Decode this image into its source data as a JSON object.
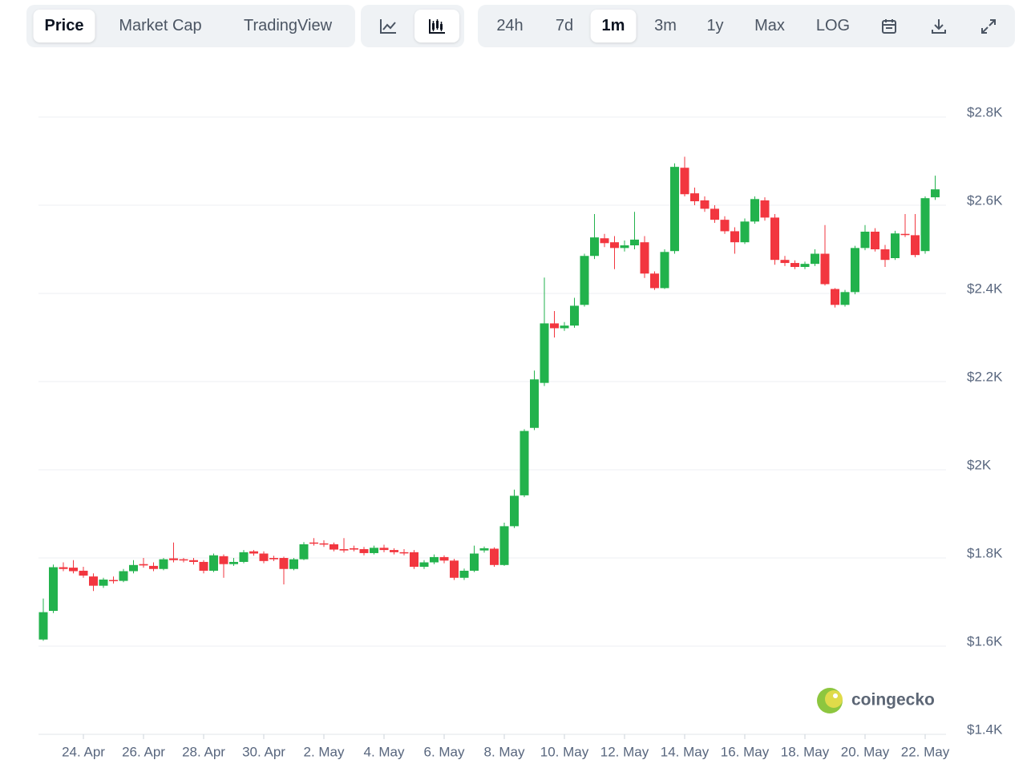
{
  "toolbar": {
    "views": [
      "Price",
      "Market Cap",
      "TradingView"
    ],
    "active_view": "Price",
    "ranges": [
      "24h",
      "7d",
      "1m",
      "3m",
      "1y",
      "Max",
      "LOG"
    ],
    "active_range": "1m"
  },
  "chart_data": {
    "type": "candlestick",
    "categories": [
      null,
      null,
      null,
      null,
      "24. Apr",
      null,
      null,
      null,
      null,
      null,
      "26. Apr",
      null,
      null,
      null,
      null,
      null,
      "28. Apr",
      null,
      null,
      null,
      null,
      null,
      "30. Apr",
      null,
      null,
      null,
      null,
      null,
      "2. May",
      null,
      null,
      null,
      null,
      null,
      "4. May",
      null,
      null,
      null,
      null,
      null,
      "6. May",
      null,
      null,
      null,
      null,
      null,
      "8. May",
      null,
      null,
      null,
      null,
      null,
      "10. May",
      null,
      null,
      null,
      null,
      null,
      "12. May",
      null,
      null,
      null,
      null,
      null,
      "14. May",
      null,
      null,
      null,
      null,
      null,
      "16. May",
      null,
      null,
      null,
      null,
      null,
      "18. May",
      null,
      null,
      null,
      null,
      null,
      "20. May",
      null,
      null,
      null,
      null,
      null,
      "22. May",
      null
    ],
    "open": [
      1615,
      1680,
      1779,
      1778,
      1771,
      1758,
      1737,
      1750,
      1748,
      1770,
      1786,
      1782,
      1775,
      1799,
      1797,
      1795,
      1791,
      1771,
      1804,
      1786,
      1791,
      1815,
      1810,
      1800,
      1800,
      1775,
      1797,
      1835,
      1833,
      1831,
      1820,
      1822,
      1820,
      1811,
      1823,
      1818,
      1813,
      1813,
      1780,
      1790,
      1802,
      1794,
      1755,
      1771,
      1817,
      1821,
      1784,
      1872,
      1942,
      2095,
      2197,
      2332,
      2321,
      2327,
      2374,
      2485,
      2525,
      2516,
      2503,
      2509,
      2516,
      2445,
      2412,
      2496,
      2685,
      2627,
      2611,
      2592,
      2567,
      2541,
      2516,
      2563,
      2611,
      2572,
      2476,
      2469,
      2460,
      2467,
      2490,
      2410,
      2374,
      2403,
      2503,
      2540,
      2500,
      2480,
      2535,
      2532,
      2496,
      2618
    ],
    "high": [
      1708,
      1785,
      1790,
      1795,
      1780,
      1765,
      1755,
      1758,
      1775,
      1795,
      1800,
      1790,
      1800,
      1835,
      1800,
      1800,
      1795,
      1810,
      1808,
      1800,
      1818,
      1818,
      1815,
      1805,
      1803,
      1800,
      1836,
      1845,
      1840,
      1835,
      1845,
      1828,
      1825,
      1828,
      1830,
      1822,
      1820,
      1818,
      1795,
      1808,
      1806,
      1798,
      1776,
      1828,
      1826,
      1824,
      1880,
      1955,
      2092,
      2225,
      2436,
      2360,
      2335,
      2390,
      2490,
      2580,
      2535,
      2530,
      2520,
      2585,
      2530,
      2450,
      2500,
      2695,
      2710,
      2640,
      2620,
      2600,
      2575,
      2550,
      2570,
      2620,
      2618,
      2580,
      2485,
      2475,
      2472,
      2500,
      2555,
      2412,
      2408,
      2508,
      2555,
      2548,
      2510,
      2542,
      2580,
      2580,
      2620,
      2667
    ],
    "low": [
      1612,
      1675,
      1770,
      1765,
      1755,
      1725,
      1732,
      1742,
      1745,
      1765,
      1778,
      1770,
      1772,
      1790,
      1790,
      1785,
      1765,
      1768,
      1755,
      1782,
      1788,
      1805,
      1788,
      1793,
      1740,
      1772,
      1795,
      1828,
      1825,
      1815,
      1812,
      1815,
      1806,
      1808,
      1813,
      1808,
      1806,
      1775,
      1775,
      1786,
      1788,
      1750,
      1750,
      1768,
      1812,
      1780,
      1782,
      1868,
      1938,
      2090,
      2190,
      2300,
      2315,
      2322,
      2370,
      2478,
      2505,
      2455,
      2495,
      2500,
      2435,
      2408,
      2410,
      2490,
      2620,
      2600,
      2585,
      2560,
      2535,
      2490,
      2512,
      2558,
      2565,
      2465,
      2462,
      2455,
      2455,
      2462,
      2418,
      2368,
      2370,
      2398,
      2498,
      2495,
      2460,
      2476,
      2528,
      2482,
      2490,
      2612
    ],
    "close": [
      1677,
      1779,
      1775,
      1770,
      1760,
      1737,
      1751,
      1749,
      1770,
      1784,
      1783,
      1775,
      1797,
      1795,
      1795,
      1791,
      1771,
      1806,
      1786,
      1791,
      1813,
      1810,
      1793,
      1797,
      1775,
      1797,
      1831,
      1833,
      1831,
      1819,
      1817,
      1819,
      1811,
      1823,
      1818,
      1813,
      1811,
      1780,
      1790,
      1802,
      1794,
      1755,
      1771,
      1810,
      1822,
      1784,
      1872,
      1941,
      2088,
      2205,
      2332,
      2321,
      2327,
      2372,
      2485,
      2527,
      2514,
      2503,
      2509,
      2522,
      2445,
      2412,
      2494,
      2687,
      2625,
      2609,
      2592,
      2567,
      2541,
      2516,
      2563,
      2614,
      2572,
      2476,
      2469,
      2460,
      2467,
      2490,
      2421,
      2374,
      2403,
      2503,
      2540,
      2500,
      2476,
      2536,
      2533,
      2487,
      2616,
      2636
    ],
    "up_color": "#22b24c",
    "down_color": "#f2363f",
    "ylim": [
      1400,
      2800
    ],
    "yticks": [
      {
        "value": 1400,
        "label": "$1.4K"
      },
      {
        "value": 1600,
        "label": "$1.6K"
      },
      {
        "value": 1800,
        "label": "$1.8K"
      },
      {
        "value": 2000,
        "label": "$2K"
      },
      {
        "value": 2200,
        "label": "$2.2K"
      },
      {
        "value": 2400,
        "label": "$2.4K"
      },
      {
        "value": 2600,
        "label": "$2.6K"
      },
      {
        "value": 2800,
        "label": "$2.8K"
      }
    ],
    "grid": true
  },
  "watermark": "coingecko"
}
